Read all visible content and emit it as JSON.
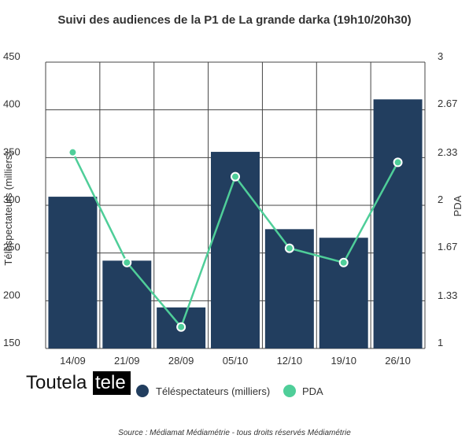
{
  "chart_data": {
    "type": "bar",
    "title": "Suivi des audiences de la P1 de La grande darka (19h10/20h30)",
    "categories": [
      "14/09",
      "21/09",
      "28/09",
      "05/10",
      "12/10",
      "19/10",
      "26/10"
    ],
    "series": [
      {
        "name": "Téléspectateurs (milliers)",
        "type": "bar",
        "axis": "left",
        "color": "#223e5f",
        "values": [
          309,
          242,
          193,
          356,
          275,
          266,
          411
        ]
      },
      {
        "name": "PDA",
        "type": "line",
        "axis": "right",
        "color": "#4fce99",
        "values": [
          2.37,
          1.6,
          1.15,
          2.2,
          1.7,
          1.6,
          2.3
        ]
      }
    ],
    "y_left": {
      "label": "Téléspectateurs (milliers)",
      "min": 150,
      "max": 450,
      "ticks": [
        "150",
        "200",
        "250",
        "300",
        "350",
        "400",
        "450"
      ],
      "tick_values": [
        150,
        200,
        250,
        300,
        350,
        400,
        450
      ]
    },
    "y_right": {
      "label": "PDA",
      "min": 1,
      "max": 3,
      "ticks": [
        "1",
        "1.33",
        "1.67",
        "2",
        "2.33",
        "2.67",
        "3"
      ],
      "tick_values": [
        1,
        1.33,
        1.67,
        2,
        2.33,
        2.67,
        3
      ]
    },
    "grid": true,
    "legend_position": "bottom"
  },
  "logo": {
    "text_a": "Toutela",
    "text_b": "tele"
  },
  "source": "Source : Médiamat Médiamétrie - tous droits réservés Médiamétrie"
}
